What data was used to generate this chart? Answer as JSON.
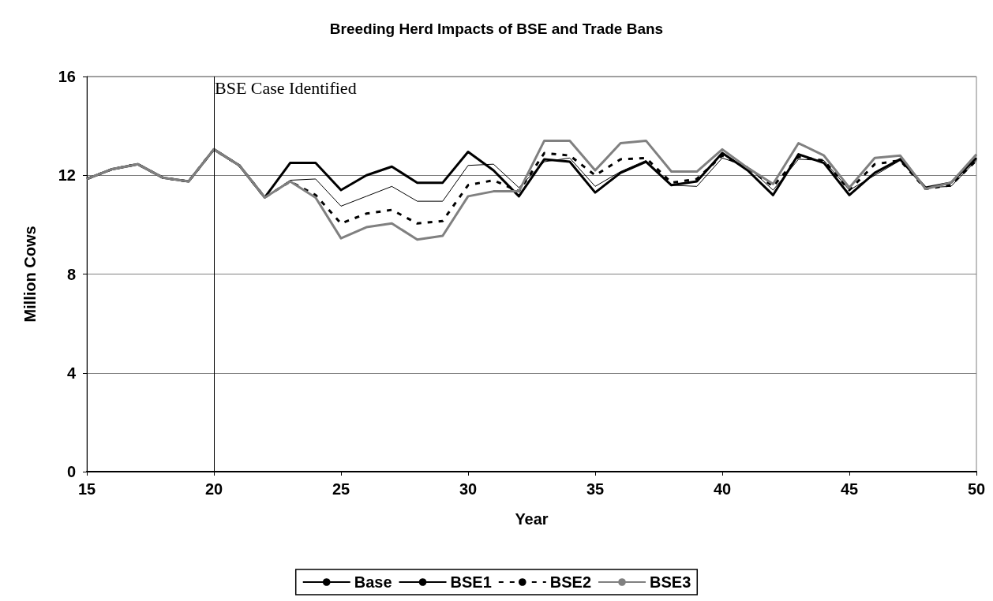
{
  "chart_data": {
    "type": "line",
    "title": "Breeding Herd Impacts of BSE and Trade Bans",
    "xlabel": "Year",
    "ylabel": "Million Cows",
    "x": [
      15,
      16,
      17,
      18,
      19,
      20,
      21,
      22,
      23,
      24,
      25,
      26,
      27,
      28,
      29,
      30,
      31,
      32,
      33,
      34,
      35,
      36,
      37,
      38,
      39,
      40,
      41,
      42,
      43,
      44,
      45,
      46,
      47,
      48,
      49,
      50
    ],
    "series": [
      {
        "name": "Base",
        "color": "#000000",
        "line_style": "solid",
        "values": [
          11.85,
          12.25,
          12.45,
          11.9,
          11.75,
          13.05,
          12.4,
          11.1,
          12.5,
          12.5,
          11.4,
          12.0,
          12.35,
          11.7,
          11.7,
          12.95,
          12.2,
          11.15,
          12.65,
          12.55,
          11.3,
          12.1,
          12.55,
          11.6,
          11.75,
          12.9,
          12.2,
          11.2,
          12.85,
          12.5,
          11.2,
          12.1,
          12.65,
          11.5,
          11.7,
          12.7
        ]
      },
      {
        "name": "BSE1",
        "color": "#000000",
        "line_style": "solid",
        "values": [
          11.85,
          12.25,
          12.45,
          11.9,
          11.75,
          13.05,
          12.4,
          11.1,
          11.8,
          11.85,
          10.75,
          11.15,
          11.55,
          10.95,
          10.95,
          12.4,
          12.45,
          11.5,
          12.55,
          12.7,
          11.55,
          12.15,
          12.6,
          11.6,
          11.55,
          12.7,
          12.35,
          11.4,
          12.65,
          12.6,
          11.4,
          12.0,
          12.6,
          11.5,
          11.55,
          12.6
        ]
      },
      {
        "name": "BSE2",
        "color": "#000000",
        "line_style": "dashed",
        "values": [
          11.85,
          12.25,
          12.45,
          11.9,
          11.75,
          13.05,
          12.4,
          11.1,
          11.75,
          11.2,
          10.05,
          10.45,
          10.6,
          10.05,
          10.15,
          11.6,
          11.8,
          11.35,
          12.9,
          12.8,
          12.0,
          12.65,
          12.7,
          11.7,
          11.85,
          12.8,
          12.3,
          11.55,
          12.75,
          12.6,
          11.4,
          12.45,
          12.6,
          11.45,
          11.6,
          12.6
        ]
      },
      {
        "name": "BSE3",
        "color": "#808080",
        "line_style": "solid",
        "values": [
          11.85,
          12.25,
          12.45,
          11.9,
          11.75,
          13.05,
          12.4,
          11.1,
          11.75,
          11.1,
          9.45,
          9.9,
          10.05,
          9.4,
          9.55,
          11.15,
          11.35,
          11.35,
          13.4,
          13.4,
          12.2,
          13.3,
          13.4,
          12.15,
          12.15,
          13.05,
          12.3,
          11.65,
          13.3,
          12.8,
          11.5,
          12.7,
          12.8,
          11.45,
          11.7,
          12.85
        ]
      }
    ],
    "xlim": [
      15,
      50
    ],
    "xticks": [
      15,
      20,
      25,
      30,
      35,
      40,
      45,
      50
    ],
    "ylim": [
      0,
      16
    ],
    "yticks": [
      0,
      4,
      8,
      12,
      16
    ],
    "grid": "y",
    "legend": "bottom",
    "marker": "none",
    "ref_lines": [
      {
        "axis": "x",
        "value": 20,
        "label": "BSE Case Identified",
        "color": "#000000"
      }
    ]
  }
}
